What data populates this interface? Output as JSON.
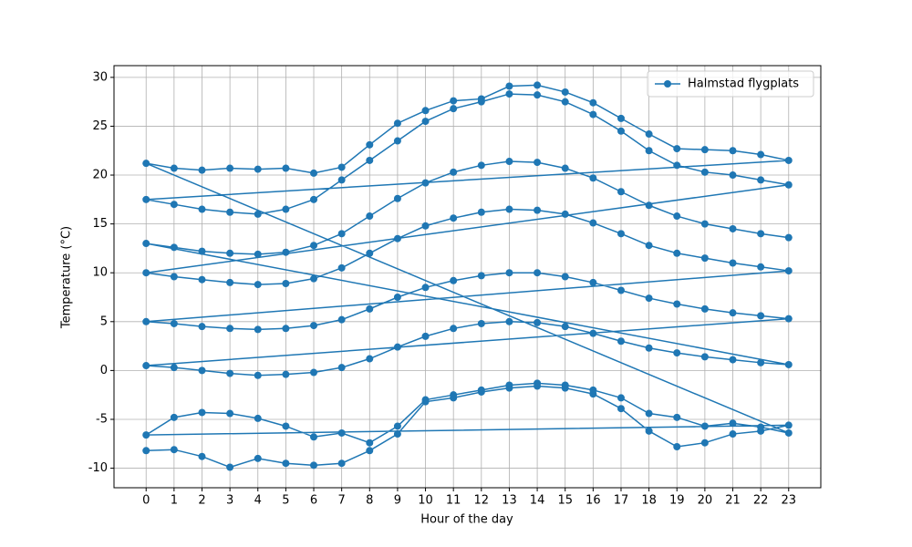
{
  "chart_data": {
    "type": "line",
    "xlabel": "Hour of the day",
    "ylabel": "Temperature (°C)",
    "x": [
      0,
      1,
      2,
      3,
      4,
      5,
      6,
      7,
      8,
      9,
      10,
      11,
      12,
      13,
      14,
      15,
      16,
      17,
      18,
      19,
      20,
      21,
      22,
      23,
      0,
      1,
      2,
      3,
      4,
      5,
      6,
      7,
      8,
      9,
      10,
      11,
      12,
      13,
      14,
      15,
      16,
      17,
      18,
      19,
      20,
      21,
      22,
      23,
      0,
      1,
      2,
      3,
      4,
      5,
      6,
      7,
      8,
      9,
      10,
      11,
      12,
      13,
      14,
      15,
      16,
      17,
      18,
      19,
      20,
      21,
      22,
      23,
      0,
      1,
      2,
      3,
      4,
      5,
      6,
      7,
      8,
      9,
      10,
      11,
      12,
      13,
      14,
      15,
      16,
      17,
      18,
      19,
      20,
      21,
      22,
      23,
      0,
      1,
      2,
      3,
      4,
      5,
      6,
      7,
      8,
      9,
      10,
      11,
      12,
      13,
      14,
      15,
      16,
      17,
      18,
      19,
      20,
      21,
      22,
      23,
      0,
      1,
      2,
      3,
      4,
      5,
      6,
      7,
      8,
      9,
      10,
      11,
      12,
      13,
      14,
      15,
      16,
      17,
      18,
      19,
      20,
      21,
      22,
      23,
      0,
      1,
      2,
      3,
      4,
      5,
      6,
      7,
      8,
      9,
      10,
      11,
      12,
      13,
      14,
      15,
      16,
      17,
      18,
      19,
      20,
      21,
      22,
      23,
      0,
      1,
      2,
      3,
      4,
      5,
      6,
      7,
      8,
      9,
      10,
      11,
      12,
      13,
      14,
      15,
      16,
      17,
      18,
      19,
      20,
      21,
      22,
      23
    ],
    "series": [
      {
        "name": "Halmstad flygplats",
        "color": "#1f77b4",
        "values": [
          -8.2,
          -8.1,
          -8.8,
          -9.9,
          -9.0,
          -9.5,
          -9.7,
          -9.5,
          -8.2,
          -6.5,
          -3.2,
          -2.8,
          -2.2,
          -1.8,
          -1.6,
          -1.8,
          -2.4,
          -3.9,
          -6.2,
          -7.8,
          -7.4,
          -6.5,
          -6.2,
          -5.6,
          -6.6,
          -4.8,
          -4.3,
          -4.4,
          -4.9,
          -5.7,
          -6.8,
          -6.4,
          -7.4,
          -5.7,
          -3.0,
          -2.5,
          -2.0,
          -1.5,
          -1.3,
          -1.5,
          -2.0,
          -2.8,
          -4.4,
          -4.8,
          -5.7,
          -5.4,
          -5.8,
          -6.4,
          21.2,
          20.7,
          20.5,
          20.7,
          20.6,
          20.7,
          20.2,
          20.8,
          23.1,
          25.3,
          26.6,
          27.6,
          27.8,
          29.1,
          29.2,
          28.5,
          27.4,
          25.8,
          24.2,
          22.7,
          22.6,
          22.5,
          22.1,
          21.5,
          17.5,
          17.0,
          16.5,
          16.2,
          16.0,
          16.5,
          17.5,
          19.5,
          21.5,
          23.5,
          25.5,
          26.8,
          27.5,
          28.3,
          28.2,
          27.5,
          26.2,
          24.5,
          22.5,
          21.0,
          20.3,
          20.0,
          19.5,
          19.0,
          10.0,
          9.6,
          9.3,
          9.0,
          8.8,
          8.9,
          9.4,
          10.5,
          12.0,
          13.5,
          14.8,
          15.6,
          16.2,
          16.5,
          16.4,
          16.0,
          15.1,
          14.0,
          12.8,
          12.0,
          11.5,
          11.0,
          10.6,
          10.2,
          5.0,
          4.8,
          4.5,
          4.3,
          4.2,
          4.3,
          4.6,
          5.2,
          6.3,
          7.5,
          8.5,
          9.2,
          9.7,
          10.0,
          10.0,
          9.6,
          9.0,
          8.2,
          7.4,
          6.8,
          6.3,
          5.9,
          5.6,
          5.3,
          0.5,
          0.3,
          0.0,
          -0.3,
          -0.5,
          -0.4,
          -0.2,
          0.3,
          1.2,
          2.4,
          3.5,
          4.3,
          4.8,
          5.0,
          4.9,
          4.5,
          3.8,
          3.0,
          2.3,
          1.8,
          1.4,
          1.1,
          0.8,
          0.6,
          13.0,
          12.6,
          12.2,
          12.0,
          11.9,
          12.1,
          12.8,
          14.0,
          15.8,
          17.6,
          19.2,
          20.3,
          21.0,
          21.4,
          21.3,
          20.7,
          19.7,
          18.3,
          16.9,
          15.8,
          15.0,
          14.5,
          14.0,
          13.6
        ]
      }
    ],
    "xlim": [
      -1.15,
      24.15
    ],
    "ylim": [
      -12,
      31.2
    ],
    "xticks": [
      0,
      1,
      2,
      3,
      4,
      5,
      6,
      7,
      8,
      9,
      10,
      11,
      12,
      13,
      14,
      15,
      16,
      17,
      18,
      19,
      20,
      21,
      22,
      23
    ],
    "yticks": [
      -10,
      -5,
      0,
      5,
      10,
      15,
      20,
      25,
      30
    ],
    "grid": true,
    "legend": "upper right"
  }
}
